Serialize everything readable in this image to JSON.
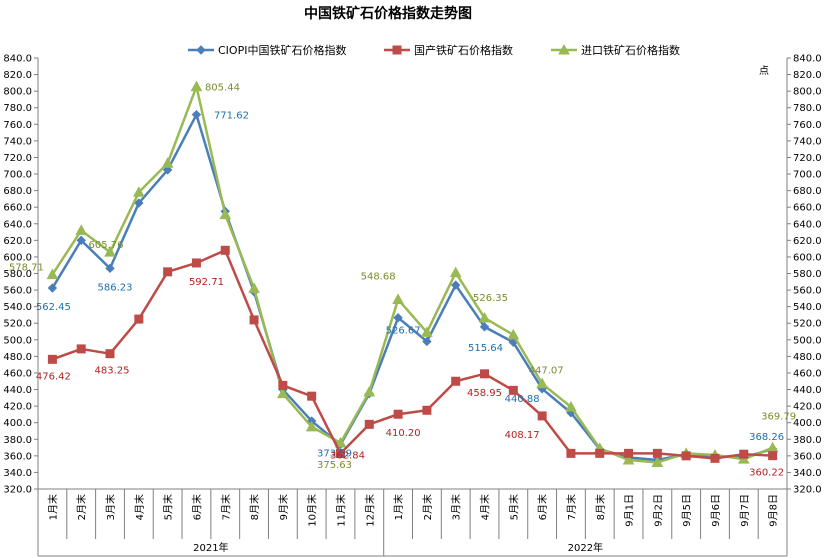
{
  "chart_data": {
    "type": "line",
    "title": "中国铁矿石价格指数走势图",
    "right_axis_unit": "点",
    "ylim": [
      320,
      840
    ],
    "y_step": 20,
    "categories": [
      "1月末",
      "2月末",
      "3月末",
      "4月末",
      "5月末",
      "6月末",
      "7月末",
      "8月末",
      "9月末",
      "10月末",
      "11月末",
      "12月末",
      "1月末",
      "2月末",
      "3月末",
      "4月末",
      "5月末",
      "6月末",
      "7月末",
      "8月末",
      "9月1日",
      "9月2日",
      "9月5日",
      "9月6日",
      "9月7日",
      "9月8日"
    ],
    "year_groups": [
      {
        "label": "2021年",
        "start": 0,
        "end": 11
      },
      {
        "label": "2022年",
        "start": 12,
        "end": 25
      }
    ],
    "series": [
      {
        "name": "CIOPI中国铁矿石价格指数",
        "color": "#4a7ebb",
        "marker": "diamond",
        "label_color": "#1f6fa8",
        "values": [
          562.45,
          620,
          586.23,
          665,
          705,
          771.62,
          655,
          558,
          440,
          402,
          373.59,
          435,
          526.67,
          498,
          566,
          515.64,
          497,
          440.88,
          412,
          368,
          358,
          355,
          362,
          360,
          358,
          368.26
        ],
        "labels": [
          {
            "index": 0,
            "text": "562.45"
          },
          {
            "index": 2,
            "text": "586.23"
          },
          {
            "index": 5,
            "text": "771.62"
          },
          {
            "index": 10,
            "text": "373.59"
          },
          {
            "index": 12,
            "text": "526.67"
          },
          {
            "index": 15,
            "text": "515.64"
          },
          {
            "index": 17,
            "text": "440.88"
          },
          {
            "index": 25,
            "text": "368.26"
          }
        ]
      },
      {
        "name": "国产铁矿石价格指数",
        "color": "#be4b48",
        "marker": "square",
        "label_color": "#b22222",
        "values": [
          476.42,
          489,
          483.25,
          525,
          582,
          592.71,
          608,
          524,
          445,
          432,
          362.84,
          398,
          410.2,
          415,
          450,
          458.95,
          439,
          408.17,
          363,
          363,
          363,
          363,
          360,
          357,
          362,
          360.22
        ],
        "labels": [
          {
            "index": 0,
            "text": "476.42"
          },
          {
            "index": 2,
            "text": "483.25"
          },
          {
            "index": 5,
            "text": "592.71"
          },
          {
            "index": 10,
            "text": "362.84"
          },
          {
            "index": 12,
            "text": "410.20"
          },
          {
            "index": 15,
            "text": "458.95"
          },
          {
            "index": 17,
            "text": "408.17"
          },
          {
            "index": 25,
            "text": "360.22"
          }
        ]
      },
      {
        "name": "进口铁矿石价格指数",
        "color": "#98b954",
        "marker": "triangle",
        "label_color": "#7a8c2e",
        "values": [
          578.71,
          632,
          605.76,
          678,
          713,
          805.44,
          651,
          562,
          435,
          395,
          375.63,
          437,
          548.68,
          509,
          581,
          526.35,
          506,
          447.07,
          419,
          369,
          355,
          352,
          363,
          361,
          356,
          369.79
        ],
        "labels": [
          {
            "index": 0,
            "text": "578.71"
          },
          {
            "index": 2,
            "text": "605.76"
          },
          {
            "index": 5,
            "text": "805.44"
          },
          {
            "index": 10,
            "text": "375.63"
          },
          {
            "index": 12,
            "text": "548.68"
          },
          {
            "index": 15,
            "text": "526.35"
          },
          {
            "index": 17,
            "text": "447.07"
          },
          {
            "index": 25,
            "text": "369.79"
          }
        ]
      }
    ],
    "legend_position": "top",
    "grid": false
  }
}
